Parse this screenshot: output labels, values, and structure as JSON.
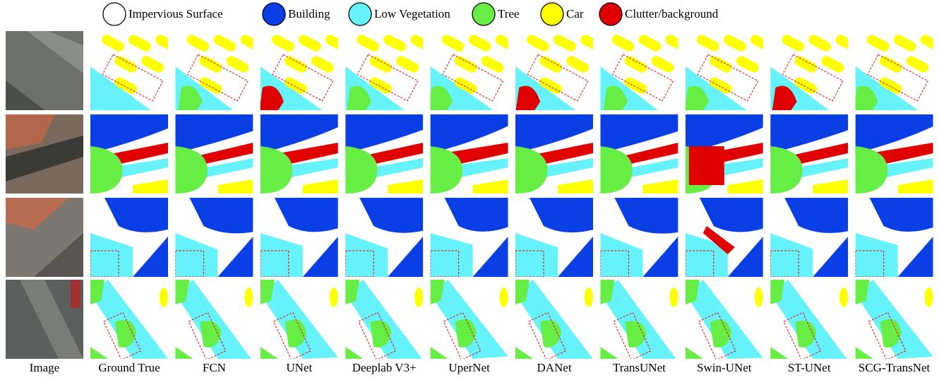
{
  "legend": [
    {
      "label": "Impervious Surface",
      "color": "#ffffff"
    },
    {
      "label": "Building",
      "color": "#0a3fe6"
    },
    {
      "label": "Low Vegetation",
      "color": "#66f2fa"
    },
    {
      "label": "Tree",
      "color": "#66ee44"
    },
    {
      "label": "Car",
      "color": "#ffff00"
    },
    {
      "label": "Clutter/background",
      "color": "#e00000"
    }
  ],
  "columns": [
    "Image",
    "Ground True",
    "FCN",
    "UNet",
    "Deeplab V3+",
    "UperNet",
    "DANet",
    "TransUNet",
    "Swin-UNet",
    "ST-UNet",
    "SCG-TransNet"
  ]
}
